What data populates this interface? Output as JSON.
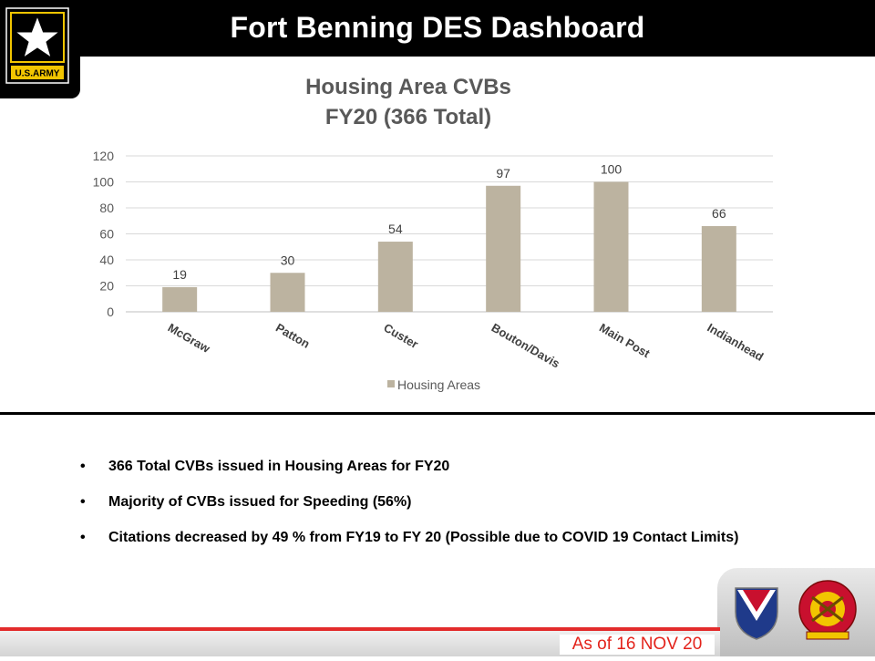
{
  "header": {
    "title": "Fort Benning DES Dashboard",
    "logo_text": "U.S.ARMY"
  },
  "chart_data": {
    "type": "bar",
    "title": "Housing Area CVBs",
    "subtitle": "FY20 (366 Total)",
    "categories": [
      "McGraw",
      "Patton",
      "Custer",
      "Bouton/Davis",
      "Main Post",
      "Indianhead"
    ],
    "series": [
      {
        "name": "Housing Areas",
        "values": [
          19,
          30,
          54,
          97,
          100,
          66
        ]
      }
    ],
    "ylim": [
      0,
      120
    ],
    "yticks": [
      0,
      20,
      40,
      60,
      80,
      100,
      120
    ],
    "xlabel": "",
    "ylabel": "",
    "grid": true,
    "legend": "bottom-center",
    "bar_color": "#bcb3a0"
  },
  "bullets": [
    "366 Total CVBs issued in Housing Areas for  FY20",
    "Majority of CVBs issued for Speeding (56%)",
    "Citations decreased by 49 % from FY19 to FY 20 (Possible due to COVID 19 Contact Limits)"
  ],
  "footer": {
    "date_text": "As of 16 NOV 20"
  },
  "colors": {
    "header_bg": "#000000",
    "accent_red": "#e3231b",
    "logo_gold": "#f2c500"
  }
}
